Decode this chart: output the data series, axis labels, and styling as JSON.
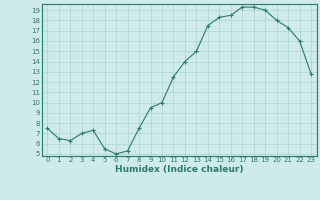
{
  "x": [
    0,
    1,
    2,
    3,
    4,
    5,
    6,
    7,
    8,
    9,
    10,
    11,
    12,
    13,
    14,
    15,
    16,
    17,
    18,
    19,
    20,
    21,
    22,
    23
  ],
  "y": [
    7.5,
    6.5,
    6.3,
    7.0,
    7.3,
    5.5,
    5.0,
    5.3,
    7.5,
    9.5,
    10.0,
    12.5,
    14.0,
    15.0,
    17.5,
    18.3,
    18.5,
    19.3,
    19.3,
    19.0,
    18.0,
    17.3,
    16.0,
    12.8
  ],
  "xlabel": "Humidex (Indice chaleur)",
  "xlim": [
    -0.5,
    23.5
  ],
  "ylim": [
    4.8,
    19.6
  ],
  "yticks": [
    5,
    6,
    7,
    8,
    9,
    10,
    11,
    12,
    13,
    14,
    15,
    16,
    17,
    18,
    19
  ],
  "xticks": [
    0,
    1,
    2,
    3,
    4,
    5,
    6,
    7,
    8,
    9,
    10,
    11,
    12,
    13,
    14,
    15,
    16,
    17,
    18,
    19,
    20,
    21,
    22,
    23
  ],
  "line_color": "#2d7a6e",
  "marker": "+",
  "bg_color": "#ceeaea",
  "grid_color": "#aad4d4",
  "label_color": "#2d7a6e",
  "tick_color": "#2d7a6e",
  "spine_color": "#2d7a6e"
}
